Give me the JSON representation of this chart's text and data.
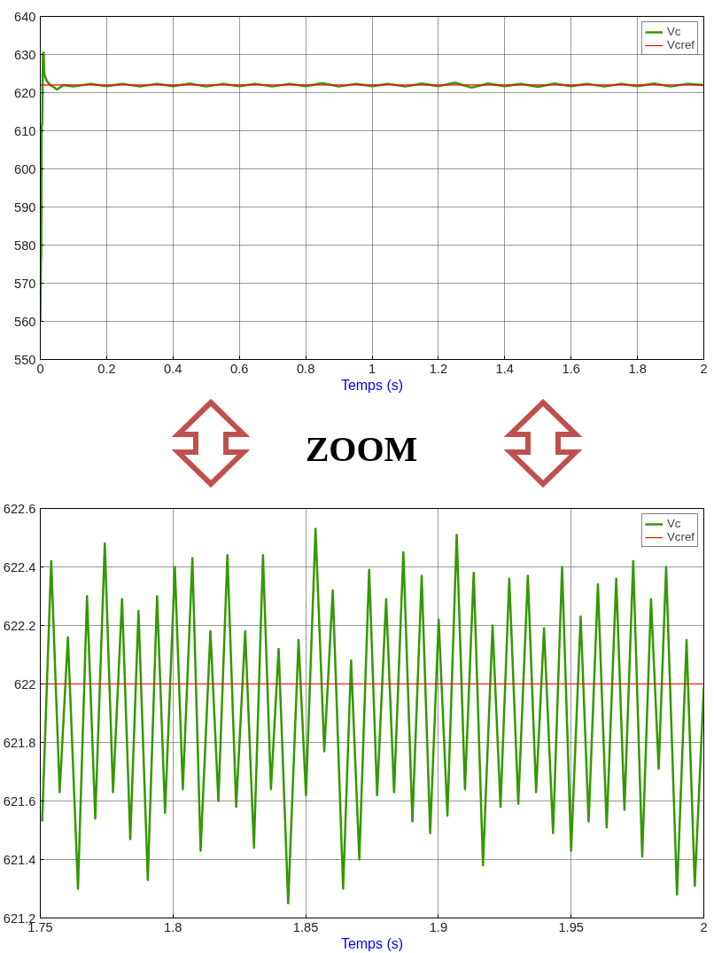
{
  "chart_data": [
    {
      "type": "line",
      "xlabel": "Temps (s)",
      "xlim": [
        0,
        2
      ],
      "ylim": [
        550,
        640
      ],
      "xticks": [
        0,
        0.2,
        0.4,
        0.6,
        0.8,
        1,
        1.2,
        1.4,
        1.6,
        1.8,
        2
      ],
      "yticks": [
        550,
        560,
        570,
        580,
        590,
        600,
        610,
        620,
        630,
        640
      ],
      "grid": true,
      "legend": "top right",
      "series": [
        {
          "name": "Vc",
          "color": "#339900",
          "x": [
            0,
            0.002,
            0.003,
            0.004,
            0.006,
            0.008,
            0.01,
            0.012,
            0.015,
            0.02,
            0.03,
            0.04,
            0.05,
            0.07,
            0.1,
            0.15,
            0.2,
            0.25,
            0.3,
            0.35,
            0.4,
            0.45,
            0.5,
            0.55,
            0.6,
            0.65,
            0.7,
            0.75,
            0.8,
            0.85,
            0.9,
            0.95,
            1,
            1.05,
            1.1,
            1.15,
            1.2,
            1.25,
            1.3,
            1.35,
            1.4,
            1.45,
            1.5,
            1.55,
            1.6,
            1.65,
            1.7,
            1.75,
            1.8,
            1.85,
            1.9,
            1.95,
            2
          ],
          "values": [
            560,
            576,
            578,
            611,
            612,
            630,
            630.5,
            625,
            624,
            623,
            622,
            621.5,
            620.8,
            622,
            621.6,
            622.3,
            621.7,
            622.3,
            621.6,
            622.3,
            621.7,
            622.4,
            621.6,
            622.3,
            621.7,
            622.3,
            621.6,
            622.3,
            621.7,
            622.5,
            621.6,
            622.3,
            621.7,
            622.3,
            621.6,
            622.4,
            621.7,
            622.6,
            621.3,
            622.4,
            621.7,
            622.3,
            621.5,
            622.4,
            621.7,
            622.3,
            621.6,
            622.3,
            621.7,
            622.4,
            621.6,
            622.3,
            622
          ]
        },
        {
          "name": "Vcref",
          "color": "#ff0000",
          "x": [
            0,
            2
          ],
          "values": [
            622,
            622
          ]
        }
      ],
      "annotations": [
        "ZOOM"
      ]
    },
    {
      "type": "line",
      "xlabel": "Temps (s)",
      "xlim": [
        1.75,
        2
      ],
      "ylim": [
        621.2,
        622.6
      ],
      "xticks": [
        1.75,
        1.8,
        1.85,
        1.9,
        1.95,
        2
      ],
      "yticks": [
        621.2,
        621.4,
        621.6,
        621.8,
        622,
        622.2,
        622.4,
        622.6
      ],
      "grid": true,
      "legend": "top right",
      "series": [
        {
          "name": "Vc",
          "color": "#339900",
          "x": [
            1.7507,
            1.7541,
            1.7573,
            1.7604,
            1.7642,
            1.7676,
            1.7707,
            1.7743,
            1.7774,
            1.7808,
            1.7839,
            1.787,
            1.7905,
            1.794,
            1.797,
            1.8007,
            1.8037,
            1.8073,
            1.8104,
            1.8141,
            1.8171,
            1.8205,
            1.8238,
            1.8272,
            1.8305,
            1.8339,
            1.8369,
            1.8398,
            1.8434,
            1.8473,
            1.8501,
            1.8537,
            1.857,
            1.8602,
            1.8641,
            1.8671,
            1.8702,
            1.8739,
            1.8769,
            1.8803,
            1.8833,
            1.8868,
            1.8902,
            1.8937,
            1.8969,
            1.9001,
            1.9034,
            1.9069,
            1.91,
            1.9133,
            1.9168,
            1.9204,
            1.9234,
            1.9267,
            1.9301,
            1.9337,
            1.9368,
            1.9398,
            1.9432,
            1.9466,
            1.95,
            1.9536,
            1.9566,
            1.9601,
            1.9634,
            1.967,
            1.9701,
            1.9734,
            1.9768,
            1.9801,
            1.983,
            1.9858,
            1.9899,
            1.9935,
            1.9966,
            2.0
          ],
          "values": [
            621.53,
            622.42,
            621.63,
            622.16,
            621.3,
            622.3,
            621.54,
            622.48,
            621.63,
            622.29,
            621.47,
            622.25,
            621.33,
            622.3,
            621.56,
            622.4,
            621.64,
            622.43,
            621.43,
            622.18,
            621.6,
            622.44,
            621.58,
            622.18,
            621.44,
            622.44,
            621.64,
            622.12,
            621.25,
            622.15,
            621.62,
            622.53,
            621.77,
            622.32,
            621.3,
            622.08,
            621.4,
            622.39,
            621.62,
            622.29,
            621.63,
            622.45,
            621.53,
            622.37,
            621.49,
            622.22,
            621.55,
            622.51,
            621.64,
            622.38,
            621.38,
            622.2,
            621.58,
            622.36,
            621.59,
            622.37,
            621.63,
            622.19,
            621.49,
            622.4,
            621.43,
            622.23,
            621.53,
            622.34,
            621.51,
            622.36,
            621.57,
            622.42,
            621.41,
            622.29,
            621.71,
            622.4,
            621.28,
            622.15,
            621.31,
            621.99
          ]
        },
        {
          "name": "Vcref",
          "color": "#ff0000",
          "x": [
            1.75,
            2
          ],
          "values": [
            622,
            622
          ]
        }
      ]
    }
  ]
}
